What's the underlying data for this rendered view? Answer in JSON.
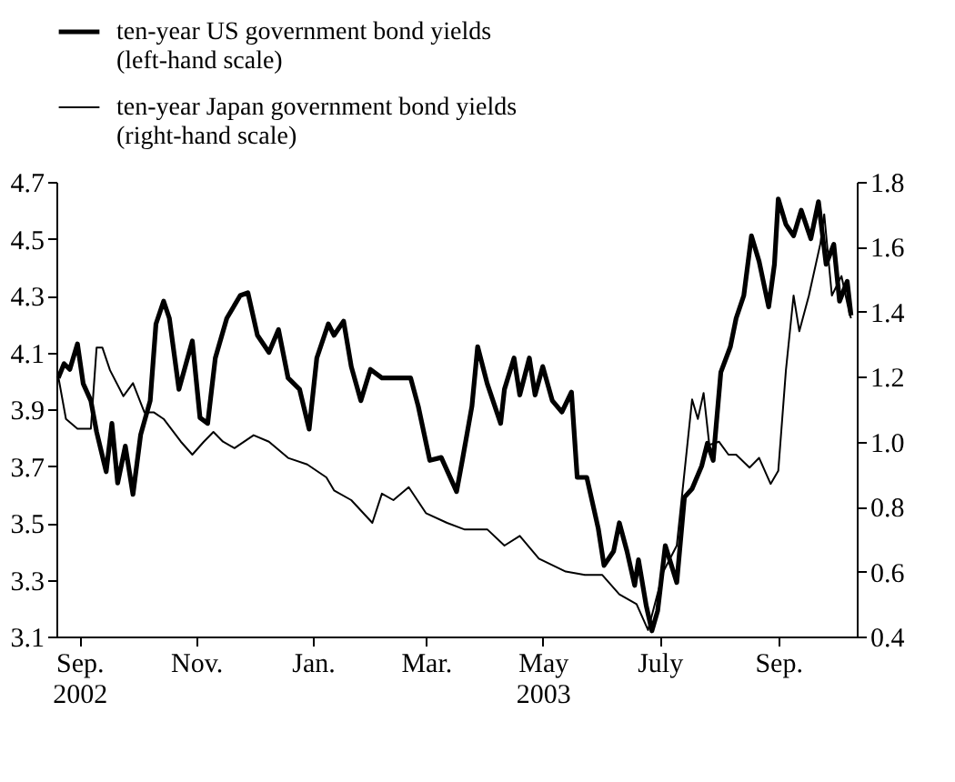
{
  "chart_data": {
    "type": "line",
    "xlim": [
      "2002-08-20",
      "2003-10-12"
    ],
    "xticks": [
      {
        "value": "2002-09-01",
        "label": "Sep.\n2002"
      },
      {
        "value": "2002-11-01",
        "label": "Nov."
      },
      {
        "value": "2003-01-01",
        "label": "Jan."
      },
      {
        "value": "2003-03-01",
        "label": "Mar."
      },
      {
        "value": "2003-05-01",
        "label": "May\n2003"
      },
      {
        "value": "2003-07-01",
        "label": "July"
      },
      {
        "value": "2003-09-01",
        "label": "Sep."
      }
    ],
    "ylim": [
      3.1,
      4.7
    ],
    "yticks": [
      3.1,
      3.3,
      3.5,
      3.7,
      3.9,
      4.1,
      4.3,
      4.5,
      4.7
    ],
    "y2lim": [
      0.4,
      1.8
    ],
    "y2ticks": [
      0.4,
      0.6,
      0.8,
      {
        "value": 1,
        "label": "1.0"
      },
      1.2,
      1.4,
      1.6,
      1.8
    ],
    "grid": false,
    "legend": "top",
    "line_style": "solid",
    "series": [
      {
        "name": "ten-year US government bond yields\n(left-hand scale)",
        "color": "#000000",
        "axis": "y",
        "x": [
          "2002-08-21",
          "2002-08-24",
          "2002-08-27",
          "2002-08-31",
          "2002-09-03",
          "2002-09-07",
          "2002-09-10",
          "2002-09-15",
          "2002-09-18",
          "2002-09-21",
          "2002-09-25",
          "2002-09-29",
          "2002-10-03",
          "2002-10-08",
          "2002-10-11",
          "2002-10-15",
          "2002-10-18",
          "2002-10-23",
          "2002-10-30",
          "2002-11-03",
          "2002-11-07",
          "2002-11-11",
          "2002-11-17",
          "2002-11-24",
          "2002-11-28",
          "2002-12-03",
          "2002-12-09",
          "2002-12-14",
          "2002-12-19",
          "2002-12-25",
          "2002-12-30",
          "2003-01-03",
          "2003-01-09",
          "2003-01-12",
          "2003-01-17",
          "2003-01-21",
          "2003-01-26",
          "2003-01-31",
          "2003-02-06",
          "2003-02-15",
          "2003-02-21",
          "2003-02-25",
          "2003-03-03",
          "2003-03-09",
          "2003-03-17",
          "2003-03-20",
          "2003-03-25",
          "2003-03-28",
          "2003-04-02",
          "2003-04-09",
          "2003-04-11",
          "2003-04-16",
          "2003-04-19",
          "2003-04-24",
          "2003-04-27",
          "2003-05-01",
          "2003-05-06",
          "2003-05-11",
          "2003-05-16",
          "2003-05-19",
          "2003-05-24",
          "2003-05-30",
          "2003-06-02",
          "2003-06-07",
          "2003-06-10",
          "2003-06-14",
          "2003-06-18",
          "2003-06-20",
          "2003-06-24",
          "2003-06-27",
          "2003-06-30",
          "2003-07-04",
          "2003-07-10",
          "2003-07-14",
          "2003-07-18",
          "2003-07-23",
          "2003-07-26",
          "2003-07-29",
          "2003-08-02",
          "2003-08-07",
          "2003-08-10",
          "2003-08-14",
          "2003-08-18",
          "2003-08-22",
          "2003-08-27",
          "2003-08-30",
          "2003-09-01",
          "2003-09-05",
          "2003-09-09",
          "2003-09-13",
          "2003-09-18",
          "2003-09-22",
          "2003-09-26",
          "2003-09-30",
          "2003-10-03",
          "2003-10-07",
          "2003-10-09"
        ],
        "values": [
          4.01,
          4.06,
          4.04,
          4.13,
          3.99,
          3.93,
          3.82,
          3.68,
          3.85,
          3.64,
          3.77,
          3.6,
          3.81,
          3.93,
          4.2,
          4.28,
          4.22,
          3.97,
          4.14,
          3.87,
          3.85,
          4.08,
          4.22,
          4.3,
          4.31,
          4.16,
          4.1,
          4.18,
          4.01,
          3.97,
          3.83,
          4.08,
          4.2,
          4.16,
          4.21,
          4.05,
          3.93,
          4.04,
          4.01,
          4.01,
          4.01,
          3.91,
          3.72,
          3.73,
          3.61,
          3.72,
          3.91,
          4.12,
          3.99,
          3.85,
          3.97,
          4.08,
          3.95,
          4.08,
          3.95,
          4.05,
          3.93,
          3.89,
          3.96,
          3.66,
          3.66,
          3.48,
          3.35,
          3.4,
          3.5,
          3.4,
          3.28,
          3.37,
          3.21,
          3.12,
          3.19,
          3.42,
          3.29,
          3.59,
          3.62,
          3.7,
          3.78,
          3.72,
          4.03,
          4.12,
          4.22,
          4.3,
          4.51,
          4.42,
          4.26,
          4.41,
          4.64,
          4.55,
          4.51,
          4.6,
          4.5,
          4.63,
          4.41,
          4.48,
          4.28,
          4.35,
          4.23
        ]
      },
      {
        "name": "ten-year Japan government bond yields\n(right-hand scale)",
        "color": "#000000",
        "axis": "y2",
        "x": [
          "2002-08-21",
          "2002-08-25",
          "2002-08-31",
          "2002-09-07",
          "2002-09-10",
          "2002-09-13",
          "2002-09-17",
          "2002-09-24",
          "2002-09-29",
          "2002-10-05",
          "2002-10-10",
          "2002-10-15",
          "2002-10-24",
          "2002-10-30",
          "2002-11-05",
          "2002-11-10",
          "2002-11-15",
          "2002-11-21",
          "2002-12-01",
          "2002-12-09",
          "2002-12-19",
          "2002-12-29",
          "2003-01-08",
          "2003-01-12",
          "2003-01-21",
          "2003-02-01",
          "2003-02-06",
          "2003-02-12",
          "2003-02-20",
          "2003-03-01",
          "2003-03-12",
          "2003-03-21",
          "2003-04-02",
          "2003-04-11",
          "2003-04-19",
          "2003-04-29",
          "2003-05-13",
          "2003-05-23",
          "2003-06-01",
          "2003-06-10",
          "2003-06-19",
          "2003-06-25",
          "2003-07-03",
          "2003-07-10",
          "2003-07-18",
          "2003-07-21",
          "2003-07-24",
          "2003-07-27",
          "2003-08-01",
          "2003-08-06",
          "2003-08-10",
          "2003-08-17",
          "2003-08-22",
          "2003-08-28",
          "2003-09-01",
          "2003-09-05",
          "2003-09-09",
          "2003-09-12",
          "2003-09-17",
          "2003-09-23",
          "2003-09-25",
          "2003-09-29",
          "2003-10-04",
          "2003-10-08",
          "2003-10-09"
        ],
        "values": [
          1.2,
          1.07,
          1.04,
          1.04,
          1.29,
          1.29,
          1.22,
          1.14,
          1.18,
          1.09,
          1.09,
          1.07,
          1.0,
          0.96,
          1.0,
          1.03,
          1.0,
          0.98,
          1.02,
          1.0,
          0.95,
          0.93,
          0.89,
          0.85,
          0.82,
          0.75,
          0.84,
          0.82,
          0.86,
          0.78,
          0.75,
          0.73,
          0.73,
          0.68,
          0.71,
          0.64,
          0.6,
          0.59,
          0.59,
          0.53,
          0.5,
          0.42,
          0.6,
          0.68,
          1.13,
          1.07,
          1.15,
          0.99,
          1.0,
          0.96,
          0.96,
          0.92,
          0.95,
          0.87,
          0.91,
          1.22,
          1.45,
          1.34,
          1.45,
          1.61,
          1.7,
          1.45,
          1.51,
          1.4,
          1.38
        ]
      }
    ]
  }
}
